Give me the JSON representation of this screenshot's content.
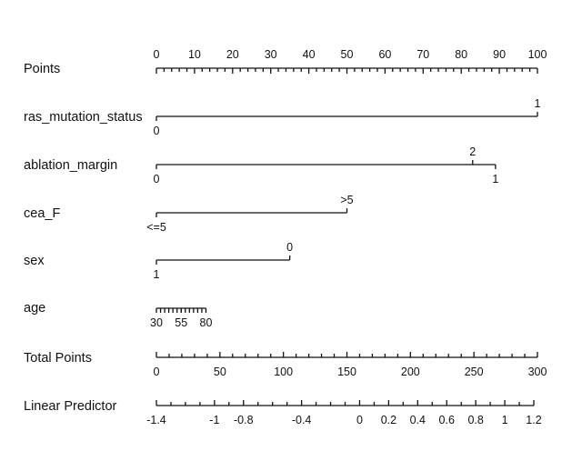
{
  "chart_data": {
    "type": "nomogram",
    "points_scale": {
      "label": "Points",
      "min": 0,
      "max": 100,
      "major_ticks": [
        0,
        10,
        20,
        30,
        40,
        50,
        60,
        70,
        80,
        90,
        100
      ],
      "minor_step": 2
    },
    "variables": [
      {
        "name": "ras_mutation_status",
        "levels": [
          {
            "label": "0",
            "points": 0,
            "side": "below"
          },
          {
            "label": "1",
            "points": 100,
            "side": "above"
          }
        ]
      },
      {
        "name": "ablation_margin",
        "levels": [
          {
            "label": "0",
            "points": 0,
            "side": "below"
          },
          {
            "label": "2",
            "points": 83,
            "side": "above"
          },
          {
            "label": "1",
            "points": 89,
            "side": "below"
          }
        ]
      },
      {
        "name": "cea_F",
        "levels": [
          {
            "label": "<=5",
            "points": 0,
            "side": "below"
          },
          {
            "label": ">5",
            "points": 50,
            "side": "above"
          }
        ]
      },
      {
        "name": "sex",
        "levels": [
          {
            "label": "1",
            "points": 0,
            "side": "below"
          },
          {
            "label": "0",
            "points": 35,
            "side": "above"
          }
        ]
      },
      {
        "name": "age",
        "range_points": [
          0,
          13
        ],
        "minor_ticks": 12,
        "levels": [
          {
            "label": "30",
            "points": 0,
            "side": "below"
          },
          {
            "label": "55",
            "points": 6.5,
            "side": "below"
          },
          {
            "label": "80",
            "points": 13,
            "side": "below"
          }
        ]
      }
    ],
    "total_points": {
      "label": "Total Points",
      "min": 0,
      "max": 300,
      "major_ticks": [
        0,
        50,
        100,
        150,
        200,
        250,
        300
      ],
      "minor_step": 10
    },
    "linear_predictor": {
      "label": "Linear Predictor",
      "min": -1.4,
      "max": 1.2,
      "ticks": [
        -1.4,
        -1,
        -0.8,
        -0.4,
        0,
        0.2,
        0.4,
        0.6,
        0.8,
        1,
        1.2
      ],
      "tick_labels": [
        "-1.4",
        "-1",
        "-0.8",
        "-0.4",
        "0",
        "0.2",
        "0.4",
        "0.6",
        "0.8",
        "1",
        "1.2"
      ],
      "minor_step": 0.1
    }
  }
}
